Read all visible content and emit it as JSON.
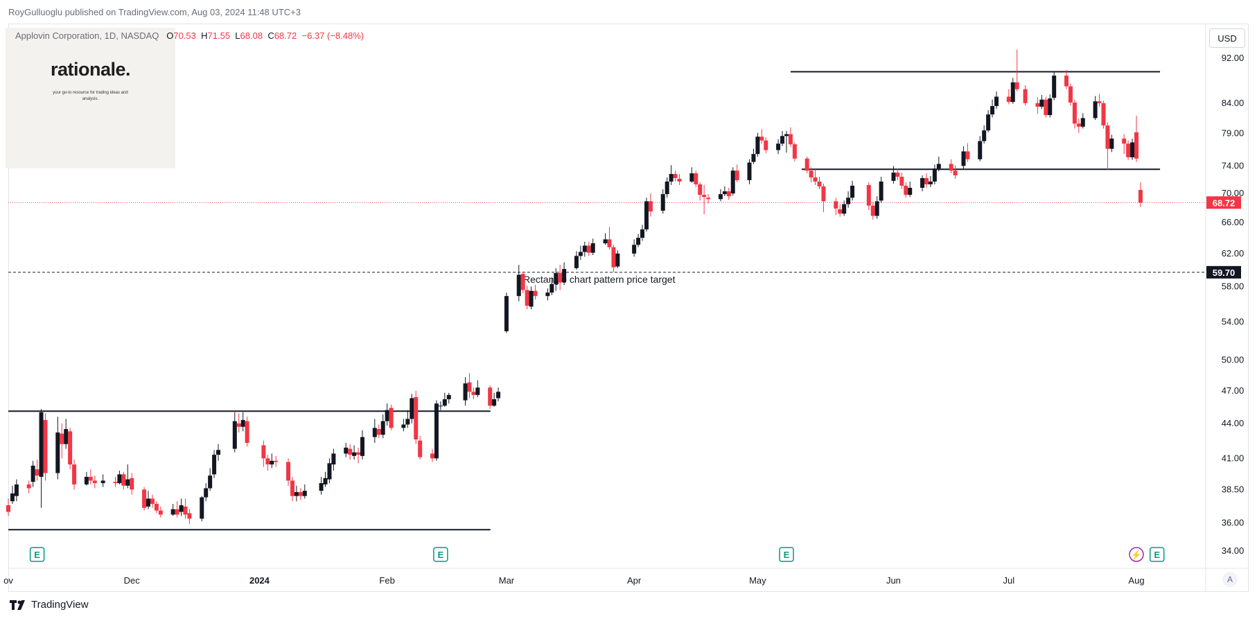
{
  "header": {
    "published": "RoyGulluoglu published on TradingView.com, Aug 03, 2024 11:48 UTC+3",
    "symbol": "Applovin Corporation, 1D, NASDAQ",
    "open_label": "O",
    "open": "70.53",
    "high_label": "H",
    "high": "71.55",
    "low_label": "L",
    "low": "68.08",
    "close_label": "C",
    "close": "68.72",
    "change": "−6.37 (−8.48%)"
  },
  "logo": {
    "name": "rationale.",
    "tagline": "your go-to resource for trading ideas and analysis."
  },
  "currency": "USD",
  "auto_label": "A",
  "footer": {
    "brand": "TradingView",
    "icon": "tradingview-logo-icon"
  },
  "colors": {
    "up": "#131722",
    "down": "#f23645",
    "price_tag": "#f23645",
    "target_tag": "#131722",
    "earnings": "#089981",
    "dividend": "#9c27b0"
  },
  "chart_data": {
    "type": "candlestick",
    "ylim": [
      33.3,
      98.5
    ],
    "y_scale": "log",
    "y_ticks": [
      "92.00",
      "84.00",
      "79.00",
      "74.00",
      "70.00",
      "66.00",
      "62.00",
      "58.00",
      "54.00",
      "50.00",
      "47.00",
      "44.00",
      "41.00",
      "38.50",
      "36.00",
      "34.00"
    ],
    "x_ticks": [
      {
        "label": "ov",
        "date": "2023-11-01"
      },
      {
        "label": "Dec",
        "date": "2023-12-01"
      },
      {
        "label": "2024",
        "date": "2024-01-01"
      },
      {
        "label": "Feb",
        "date": "2024-02-01"
      },
      {
        "label": "Mar",
        "date": "2024-03-01"
      },
      {
        "label": "Apr",
        "date": "2024-04-01"
      },
      {
        "label": "May",
        "date": "2024-05-01"
      },
      {
        "label": "Jun",
        "date": "2024-06-03"
      },
      {
        "label": "Jul",
        "date": "2024-07-01"
      },
      {
        "label": "Aug",
        "date": "2024-08-01"
      }
    ],
    "last_price": "68.72",
    "target_price": "59.70",
    "annotation": "Rectangle chart pattern price target",
    "rectangles": [
      {
        "top": 45.1,
        "bottom": 35.5,
        "start": "2023-11-01",
        "end": "2024-02-16"
      },
      {
        "top": 89.5,
        "bottom": 73.5,
        "start": "2024-05-09",
        "end": "2024-07-31"
      }
    ],
    "events": [
      {
        "date": "2023-11-08",
        "type": "earnings",
        "label": "E"
      },
      {
        "date": "2024-02-14",
        "type": "earnings",
        "label": "E"
      },
      {
        "date": "2024-05-08",
        "type": "earnings",
        "label": "E"
      },
      {
        "date": "2024-08-01",
        "type": "dividend",
        "label": "⚡"
      },
      {
        "date": "2024-08-06",
        "type": "earnings",
        "label": "E"
      }
    ],
    "candles": [
      [
        "2023-11-01",
        37.3,
        36.8,
        37.8,
        36.5
      ],
      [
        "2023-11-02",
        37.6,
        38.2,
        38.8,
        37.4
      ],
      [
        "2023-11-03",
        38.0,
        38.9,
        39.3,
        37.6
      ],
      [
        "2023-11-06",
        38.9,
        38.6,
        39.2,
        38.2
      ],
      [
        "2023-11-07",
        39.1,
        40.4,
        40.8,
        38.7
      ],
      [
        "2023-11-08",
        40.1,
        39.6,
        40.9,
        39.2
      ],
      [
        "2023-11-09",
        39.5,
        45.0,
        45.3,
        37.1
      ],
      [
        "2023-11-10",
        44.3,
        39.8,
        44.9,
        39.2
      ],
      [
        "2023-11-13",
        39.8,
        43.2,
        44.6,
        39.3
      ],
      [
        "2023-11-14",
        43.1,
        42.2,
        44.0,
        41.0
      ],
      [
        "2023-11-15",
        42.2,
        43.5,
        44.4,
        41.8
      ],
      [
        "2023-11-16",
        43.3,
        40.5,
        43.6,
        40.1
      ],
      [
        "2023-11-17",
        40.5,
        38.9,
        40.9,
        38.5
      ],
      [
        "2023-11-20",
        38.9,
        39.5,
        39.9,
        38.8
      ],
      [
        "2023-11-21",
        39.5,
        39.2,
        40.1,
        38.9
      ],
      [
        "2023-11-22",
        39.2,
        39.0,
        39.6,
        38.6
      ],
      [
        "2023-11-24",
        39.0,
        39.2,
        39.7,
        38.7
      ],
      [
        "2023-11-27",
        39.1,
        39.0,
        39.5,
        38.7
      ],
      [
        "2023-11-28",
        39.0,
        39.7,
        40.0,
        38.9
      ],
      [
        "2023-11-29",
        39.7,
        38.8,
        39.9,
        38.5
      ],
      [
        "2023-11-30",
        38.8,
        39.3,
        40.5,
        38.6
      ],
      [
        "2023-12-01",
        39.4,
        38.5,
        39.8,
        38.1
      ],
      [
        "2023-12-04",
        38.5,
        37.1,
        38.7,
        36.9
      ],
      [
        "2023-12-05",
        37.2,
        37.8,
        38.4,
        37.0
      ],
      [
        "2023-12-06",
        37.8,
        37.4,
        38.1,
        37.1
      ],
      [
        "2023-12-07",
        37.4,
        36.9,
        37.6,
        36.7
      ],
      [
        "2023-12-08",
        36.9,
        36.6,
        37.2,
        36.4
      ],
      [
        "2023-12-11",
        36.6,
        37.0,
        37.4,
        36.5
      ],
      [
        "2023-12-12",
        37.0,
        36.6,
        37.6,
        36.4
      ],
      [
        "2023-12-13",
        36.8,
        37.3,
        37.8,
        36.5
      ],
      [
        "2023-12-14",
        37.2,
        36.6,
        37.8,
        36.3
      ],
      [
        "2023-12-15",
        36.7,
        36.3,
        37.0,
        35.9
      ],
      [
        "2023-12-18",
        36.3,
        37.9,
        38.0,
        36.1
      ],
      [
        "2023-12-19",
        37.9,
        38.6,
        39.0,
        37.6
      ],
      [
        "2023-12-20",
        38.6,
        39.6,
        40.2,
        38.4
      ],
      [
        "2023-12-21",
        39.7,
        41.3,
        41.7,
        39.4
      ],
      [
        "2023-12-22",
        41.3,
        41.7,
        42.2,
        40.8
      ],
      [
        "2023-12-26",
        41.8,
        44.2,
        45.0,
        41.5
      ],
      [
        "2023-12-27",
        44.0,
        43.7,
        44.9,
        43.2
      ],
      [
        "2023-12-28",
        43.7,
        44.3,
        45.0,
        43.3
      ],
      [
        "2023-12-29",
        44.2,
        42.3,
        44.6,
        42.0
      ],
      [
        "2024-01-02",
        42.1,
        41.0,
        42.5,
        40.3
      ],
      [
        "2024-01-03",
        41.0,
        40.5,
        41.3,
        40.0
      ],
      [
        "2024-01-04",
        40.5,
        40.8,
        41.4,
        40.2
      ],
      [
        "2024-01-05",
        40.8,
        40.7,
        41.2,
        40.3
      ],
      [
        "2024-01-08",
        40.7,
        39.2,
        41.0,
        38.8
      ],
      [
        "2024-01-09",
        39.2,
        38.0,
        39.5,
        37.6
      ],
      [
        "2024-01-10",
        38.0,
        38.3,
        38.8,
        37.6
      ],
      [
        "2024-01-11",
        38.3,
        38.0,
        38.6,
        37.7
      ],
      [
        "2024-01-12",
        38.0,
        38.4,
        38.9,
        37.8
      ],
      [
        "2024-01-16",
        38.4,
        39.0,
        39.5,
        38.1
      ],
      [
        "2024-01-17",
        38.9,
        39.4,
        39.9,
        38.7
      ],
      [
        "2024-01-18",
        39.3,
        40.6,
        41.0,
        39.0
      ],
      [
        "2024-01-19",
        40.5,
        41.4,
        41.8,
        40.0
      ],
      [
        "2024-01-22",
        41.4,
        41.9,
        42.3,
        41.1
      ],
      [
        "2024-01-23",
        41.8,
        41.3,
        42.2,
        40.9
      ],
      [
        "2024-01-24",
        41.2,
        41.5,
        42.1,
        40.9
      ],
      [
        "2024-01-25",
        41.5,
        41.3,
        41.9,
        40.6
      ],
      [
        "2024-01-26",
        41.2,
        42.8,
        43.4,
        40.9
      ],
      [
        "2024-01-29",
        42.8,
        43.6,
        44.4,
        42.3
      ],
      [
        "2024-01-30",
        43.5,
        43.0,
        43.9,
        42.7
      ],
      [
        "2024-01-31",
        43.0,
        44.2,
        44.8,
        42.7
      ],
      [
        "2024-02-01",
        44.2,
        45.2,
        45.8,
        43.8
      ],
      [
        "2024-02-02",
        45.4,
        43.6,
        45.7,
        43.4
      ],
      [
        "2024-02-05",
        43.6,
        43.9,
        44.4,
        43.3
      ],
      [
        "2024-02-06",
        43.9,
        44.4,
        45.2,
        43.6
      ],
      [
        "2024-02-07",
        44.4,
        46.3,
        46.7,
        44.0
      ],
      [
        "2024-02-08",
        46.4,
        42.6,
        47.0,
        42.2
      ],
      [
        "2024-02-09",
        42.5,
        41.1,
        42.9,
        40.9
      ],
      [
        "2024-02-12",
        41.4,
        41.0,
        41.8,
        40.7
      ],
      [
        "2024-02-13",
        41.0,
        45.8,
        46.1,
        40.8
      ],
      [
        "2024-02-14",
        45.6,
        45.6,
        46.0,
        45.2
      ],
      [
        "2024-02-15",
        45.6,
        46.2,
        46.8,
        45.5
      ],
      [
        "2024-02-16",
        46.2,
        46.6,
        46.8,
        45.8
      ]
    ],
    "candles_2": [
      [
        "2024-02-20",
        46.1,
        47.7,
        48.3,
        45.6
      ],
      [
        "2024-02-21",
        47.8,
        46.9,
        48.7,
        46.3
      ],
      [
        "2024-02-22",
        46.9,
        46.6,
        47.3,
        46.2
      ],
      [
        "2024-02-23",
        46.6,
        47.3,
        48.0,
        46.4
      ],
      [
        "2024-02-26",
        47.3,
        45.6,
        47.5,
        45.3
      ],
      [
        "2024-02-27",
        45.6,
        46.2,
        46.8,
        45.5
      ],
      [
        "2024-02-28",
        46.3,
        46.9,
        47.3,
        46.0
      ]
    ],
    "candles_3": [
      [
        "2024-03-01",
        53.0,
        56.9,
        57.3,
        52.8
      ],
      [
        "2024-03-04",
        56.9,
        59.4,
        60.6,
        56.3
      ],
      [
        "2024-03-05",
        59.5,
        57.6,
        59.8,
        57.2
      ],
      [
        "2024-03-06",
        57.6,
        55.8,
        58.1,
        55.4
      ],
      [
        "2024-03-07",
        55.7,
        57.5,
        58.0,
        55.4
      ],
      [
        "2024-03-08",
        57.5,
        56.9,
        58.2,
        56.5
      ],
      [
        "2024-03-11",
        56.9,
        57.3,
        57.8,
        56.4
      ],
      [
        "2024-03-12",
        57.3,
        58.3,
        59.0,
        57.0
      ],
      [
        "2024-03-13",
        58.3,
        59.6,
        60.2,
        57.5
      ],
      [
        "2024-03-14",
        59.6,
        58.5,
        60.6,
        57.6
      ],
      [
        "2024-03-15",
        58.5,
        60.1,
        60.9,
        58.2
      ],
      [
        "2024-03-18",
        60.2,
        61.7,
        62.3,
        60.0
      ],
      [
        "2024-03-19",
        61.7,
        62.2,
        63.0,
        61.2
      ],
      [
        "2024-03-20",
        62.2,
        63.0,
        63.5,
        61.6
      ],
      [
        "2024-03-21",
        63.0,
        62.1,
        63.5,
        61.7
      ],
      [
        "2024-03-22",
        62.1,
        63.3,
        63.9,
        61.8
      ],
      [
        "2024-03-25",
        63.3,
        63.8,
        64.6,
        63.1
      ],
      [
        "2024-03-26",
        63.8,
        62.8,
        65.4,
        62.5
      ],
      [
        "2024-03-27",
        62.8,
        60.3,
        63.1,
        59.7
      ],
      [
        "2024-03-28",
        60.4,
        62.0,
        62.4,
        60.2
      ],
      [
        "2024-04-01",
        62.0,
        63.1,
        63.8,
        61.6
      ],
      [
        "2024-04-02",
        63.1,
        64.0,
        64.5,
        62.8
      ],
      [
        "2024-04-03",
        64.0,
        65.1,
        65.7,
        63.6
      ],
      [
        "2024-04-04",
        65.1,
        68.9,
        69.4,
        64.8
      ],
      [
        "2024-04-05",
        68.9,
        67.5,
        70.0,
        66.8
      ],
      [
        "2024-04-08",
        67.6,
        69.9,
        70.6,
        67.2
      ],
      [
        "2024-04-09",
        69.9,
        71.7,
        72.3,
        69.4
      ],
      [
        "2024-04-10",
        71.7,
        72.8,
        74.1,
        71.2
      ],
      [
        "2024-04-11",
        72.8,
        72.2,
        73.3,
        71.7
      ],
      [
        "2024-04-12",
        72.1,
        71.7,
        72.8,
        71.2
      ],
      [
        "2024-04-15",
        71.7,
        72.9,
        73.8,
        71.5
      ],
      [
        "2024-04-16",
        72.9,
        71.3,
        73.3,
        70.9
      ],
      [
        "2024-04-17",
        71.3,
        69.8,
        71.6,
        69.0
      ],
      [
        "2024-04-18",
        69.8,
        69.5,
        71.2,
        67.1
      ],
      [
        "2024-04-19",
        69.4,
        69.2,
        69.9,
        68.6
      ],
      [
        "2024-04-22",
        69.2,
        69.9,
        70.6,
        68.9
      ],
      [
        "2024-04-23",
        69.9,
        70.3,
        71.0,
        69.6
      ],
      [
        "2024-04-24",
        70.3,
        69.6,
        70.8,
        69.1
      ]
    ],
    "candles_4": [
      [
        "2024-04-25",
        70.0,
        73.3,
        73.8,
        69.7
      ],
      [
        "2024-04-26",
        73.3,
        71.9,
        74.2,
        71.6
      ],
      [
        "2024-04-29",
        71.9,
        74.5,
        75.0,
        71.3
      ],
      [
        "2024-04-30",
        74.6,
        75.8,
        76.6,
        74.3
      ],
      [
        "2024-05-01",
        75.8,
        78.5,
        79.1,
        75.4
      ],
      [
        "2024-05-02",
        78.5,
        77.9,
        79.7,
        77.4
      ],
      [
        "2024-05-03",
        77.9,
        76.4,
        78.4,
        75.9
      ],
      [
        "2024-05-06",
        76.4,
        77.4,
        78.1,
        75.8
      ],
      [
        "2024-05-07",
        77.4,
        78.6,
        79.4,
        77.0
      ],
      [
        "2024-05-08",
        78.6,
        78.9,
        79.4,
        76.0
      ],
      [
        "2024-05-09",
        78.9,
        77.3,
        80.0,
        76.9
      ],
      [
        "2024-05-10",
        77.3,
        75.1,
        77.6,
        74.7
      ],
      [
        "2024-05-13",
        75.1,
        73.3,
        75.4,
        72.9
      ],
      [
        "2024-05-14",
        73.3,
        72.3,
        73.8,
        71.6
      ],
      [
        "2024-05-15",
        72.3,
        71.7,
        73.5,
        71.2
      ],
      [
        "2024-05-16",
        71.7,
        71.0,
        72.4,
        70.6
      ],
      [
        "2024-05-17",
        71.0,
        68.9,
        71.4,
        67.4
      ],
      [
        "2024-05-20",
        68.9,
        67.9,
        69.4,
        67.0
      ],
      [
        "2024-05-21",
        67.8,
        67.2,
        68.5,
        66.8
      ],
      [
        "2024-05-22",
        67.2,
        68.5,
        69.0,
        66.9
      ],
      [
        "2024-05-23",
        68.5,
        69.4,
        70.3,
        68.0
      ],
      [
        "2024-05-24",
        69.4,
        71.1,
        71.8,
        69.0
      ],
      [
        "2024-05-28",
        71.2,
        68.3,
        71.6,
        67.7
      ],
      [
        "2024-05-29",
        68.3,
        66.9,
        68.8,
        66.4
      ],
      [
        "2024-05-30",
        66.9,
        68.9,
        69.6,
        66.5
      ],
      [
        "2024-05-31",
        69.0,
        71.7,
        72.4,
        68.7
      ],
      [
        "2024-06-03",
        71.8,
        73.0,
        74.0,
        71.4
      ],
      [
        "2024-06-04",
        73.0,
        72.4,
        73.6,
        71.9
      ],
      [
        "2024-06-05",
        72.4,
        71.1,
        73.0,
        70.6
      ],
      [
        "2024-06-06",
        71.1,
        69.8,
        71.6,
        69.4
      ],
      [
        "2024-06-07",
        69.8,
        70.8,
        71.7,
        69.5
      ],
      [
        "2024-06-10",
        70.8,
        72.2,
        72.6,
        70.3
      ],
      [
        "2024-06-11",
        72.2,
        71.3,
        72.9,
        70.8
      ],
      [
        "2024-06-12",
        71.3,
        71.7,
        72.5,
        70.9
      ],
      [
        "2024-06-13",
        71.7,
        73.6,
        74.2,
        71.3
      ],
      [
        "2024-06-14",
        73.6,
        74.3,
        75.4,
        73.2
      ],
      [
        "2024-06-17",
        74.3,
        73.3,
        75.0,
        72.9
      ],
      [
        "2024-06-18",
        73.3,
        72.6,
        74.1,
        72.1
      ]
    ]
  }
}
